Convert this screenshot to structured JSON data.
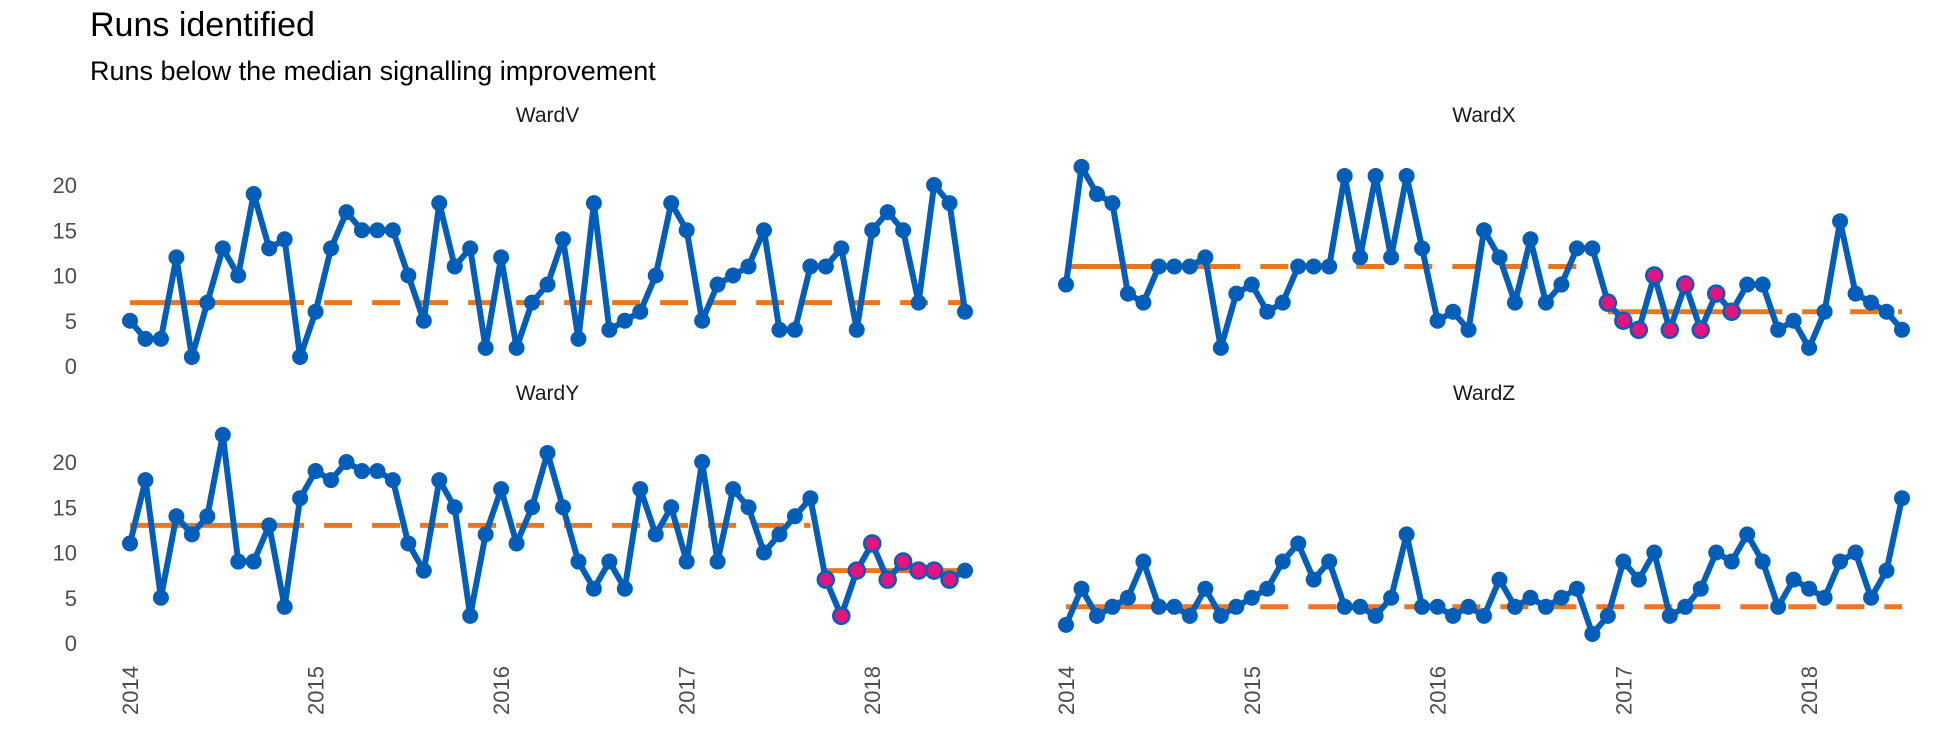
{
  "title": "Runs identified",
  "subtitle": "Runs below the median signalling improvement",
  "colors": {
    "line": "#005EB8",
    "median": "#E87722",
    "highlight": "#E0157F"
  },
  "chart_data": {
    "type": "line",
    "x_ticks": [
      "2014",
      "2015",
      "2016",
      "2017",
      "2018"
    ],
    "y_ticks": [
      0,
      5,
      10,
      15,
      20
    ],
    "ylim": [
      0,
      22
    ],
    "grid": false,
    "panels": [
      {
        "name": "WardV",
        "values": [
          5,
          3,
          3,
          12,
          1,
          7,
          13,
          10,
          19,
          13,
          14,
          1,
          6,
          13,
          17,
          15,
          15,
          15,
          10,
          5,
          18,
          11,
          13,
          2,
          12,
          2,
          7,
          9,
          14,
          3,
          18,
          4,
          5,
          6,
          10,
          18,
          15,
          5,
          9,
          10,
          11,
          15,
          4,
          4,
          11,
          11,
          13,
          4,
          15,
          17,
          15,
          7,
          20,
          18,
          6
        ],
        "medians": [
          {
            "from": 0,
            "to": 54,
            "value": 7
          }
        ],
        "highlight": []
      },
      {
        "name": "WardX",
        "values": [
          9,
          22,
          19,
          18,
          8,
          7,
          11,
          11,
          11,
          12,
          2,
          8,
          9,
          6,
          7,
          11,
          11,
          11,
          21,
          12,
          21,
          12,
          21,
          13,
          5,
          6,
          4,
          15,
          12,
          7,
          14,
          7,
          9,
          13,
          13,
          7,
          5,
          4,
          10,
          4,
          9,
          4,
          8,
          6,
          9,
          9,
          4,
          5,
          2,
          6,
          16,
          8,
          7,
          6,
          4
        ],
        "medians": [
          {
            "from": 0,
            "to": 34,
            "value": 11
          },
          {
            "from": 35,
            "to": 54,
            "value": 6
          }
        ],
        "highlight": [
          35,
          36,
          37,
          38,
          39,
          40,
          41,
          42,
          43
        ]
      },
      {
        "name": "WardY",
        "values": [
          11,
          18,
          5,
          14,
          12,
          14,
          23,
          9,
          9,
          13,
          4,
          16,
          19,
          18,
          20,
          19,
          19,
          18,
          11,
          8,
          18,
          15,
          3,
          12,
          17,
          11,
          15,
          21,
          15,
          9,
          6,
          9,
          6,
          17,
          12,
          15,
          9,
          20,
          9,
          17,
          15,
          10,
          12,
          14,
          16,
          7,
          3,
          8,
          11,
          7,
          9,
          8,
          8,
          7,
          8
        ],
        "medians": [
          {
            "from": 0,
            "to": 44,
            "value": 13
          },
          {
            "from": 45,
            "to": 54,
            "value": 8
          }
        ],
        "highlight": [
          45,
          46,
          47,
          48,
          49,
          50,
          51,
          52,
          53
        ]
      },
      {
        "name": "WardZ",
        "values": [
          2,
          6,
          3,
          4,
          5,
          9,
          4,
          4,
          3,
          6,
          3,
          4,
          5,
          6,
          9,
          11,
          7,
          9,
          4,
          4,
          3,
          5,
          12,
          4,
          4,
          3,
          4,
          3,
          7,
          4,
          5,
          4,
          5,
          6,
          1,
          3,
          9,
          7,
          10,
          3,
          4,
          6,
          10,
          9,
          12,
          9,
          4,
          7,
          6,
          5,
          9,
          10,
          5,
          8,
          16
        ],
        "medians": [
          {
            "from": 0,
            "to": 54,
            "value": 4
          }
        ],
        "highlight": []
      }
    ]
  }
}
